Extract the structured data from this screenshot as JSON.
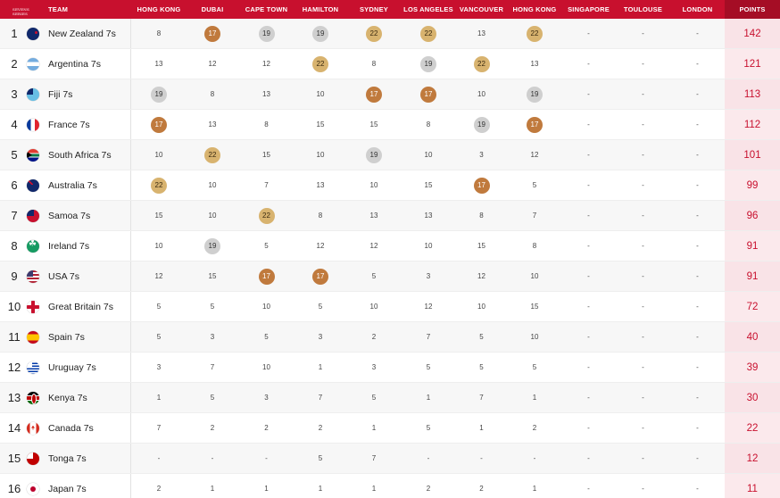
{
  "colors": {
    "header_bg": "#c8102e",
    "points_text": "#c8102e",
    "gold_medal": "#d8b36f",
    "silver_medal": "#cfcfcf",
    "bronze_medal": "#c07a3d"
  },
  "logo_text": "SEVENS SERIES",
  "header": {
    "team": "TEAM",
    "events": [
      "HONG KONG",
      "DUBAI",
      "CAPE TOWN",
      "HAMILTON",
      "SYDNEY",
      "LOS ANGELES",
      "VANCOUVER",
      "HONG KONG",
      "SINGAPORE",
      "TOULOUSE",
      "LONDON"
    ],
    "points": "POINTS"
  },
  "rows": [
    {
      "rank": "1",
      "team": "New Zealand 7s",
      "flag": "nz",
      "scores": [
        "8",
        "17",
        "19",
        "19",
        "22",
        "22",
        "13",
        "22",
        "-",
        "-",
        "-"
      ],
      "medals": [
        "",
        "bronze",
        "silver",
        "silver",
        "gold",
        "gold",
        "",
        "gold",
        "",
        "",
        ""
      ],
      "points": "142"
    },
    {
      "rank": "2",
      "team": "Argentina 7s",
      "flag": "ar",
      "scores": [
        "13",
        "12",
        "12",
        "22",
        "8",
        "19",
        "22",
        "13",
        "-",
        "-",
        "-"
      ],
      "medals": [
        "",
        "",
        "",
        "gold",
        "",
        "silver",
        "gold",
        "",
        "",
        "",
        ""
      ],
      "points": "121"
    },
    {
      "rank": "3",
      "team": "Fiji 7s",
      "flag": "fj",
      "scores": [
        "19",
        "8",
        "13",
        "10",
        "17",
        "17",
        "10",
        "19",
        "-",
        "-",
        "-"
      ],
      "medals": [
        "silver",
        "",
        "",
        "",
        "bronze",
        "bronze",
        "",
        "silver",
        "",
        "",
        ""
      ],
      "points": "113"
    },
    {
      "rank": "4",
      "team": "France 7s",
      "flag": "fr",
      "scores": [
        "17",
        "13",
        "8",
        "15",
        "15",
        "8",
        "19",
        "17",
        "-",
        "-",
        "-"
      ],
      "medals": [
        "bronze",
        "",
        "",
        "",
        "",
        "",
        "silver",
        "bronze",
        "",
        "",
        ""
      ],
      "points": "112"
    },
    {
      "rank": "5",
      "team": "South Africa 7s",
      "flag": "sa",
      "scores": [
        "10",
        "22",
        "15",
        "10",
        "19",
        "10",
        "3",
        "12",
        "-",
        "-",
        "-"
      ],
      "medals": [
        "",
        "gold",
        "",
        "",
        "silver",
        "",
        "",
        "",
        "",
        "",
        ""
      ],
      "points": "101"
    },
    {
      "rank": "6",
      "team": "Australia 7s",
      "flag": "au",
      "scores": [
        "22",
        "10",
        "7",
        "13",
        "10",
        "15",
        "17",
        "5",
        "-",
        "-",
        "-"
      ],
      "medals": [
        "gold",
        "",
        "",
        "",
        "",
        "",
        "bronze",
        "",
        "",
        "",
        ""
      ],
      "points": "99"
    },
    {
      "rank": "7",
      "team": "Samoa 7s",
      "flag": "ws",
      "scores": [
        "15",
        "10",
        "22",
        "8",
        "13",
        "13",
        "8",
        "7",
        "-",
        "-",
        "-"
      ],
      "medals": [
        "",
        "",
        "gold",
        "",
        "",
        "",
        "",
        "",
        "",
        "",
        ""
      ],
      "points": "96"
    },
    {
      "rank": "8",
      "team": "Ireland 7s",
      "flag": "ie",
      "scores": [
        "10",
        "19",
        "5",
        "12",
        "12",
        "10",
        "15",
        "8",
        "-",
        "-",
        "-"
      ],
      "medals": [
        "",
        "silver",
        "",
        "",
        "",
        "",
        "",
        "",
        "",
        "",
        ""
      ],
      "points": "91"
    },
    {
      "rank": "9",
      "team": "USA 7s",
      "flag": "us",
      "scores": [
        "12",
        "15",
        "17",
        "17",
        "5",
        "3",
        "12",
        "10",
        "-",
        "-",
        "-"
      ],
      "medals": [
        "",
        "",
        "bronze",
        "bronze",
        "",
        "",
        "",
        "",
        "",
        "",
        ""
      ],
      "points": "91"
    },
    {
      "rank": "10",
      "team": "Great Britain 7s",
      "flag": "gb",
      "scores": [
        "5",
        "5",
        "10",
        "5",
        "10",
        "12",
        "10",
        "15",
        "-",
        "-",
        "-"
      ],
      "medals": [
        "",
        "",
        "",
        "",
        "",
        "",
        "",
        "",
        "",
        "",
        ""
      ],
      "points": "72"
    },
    {
      "rank": "11",
      "team": "Spain 7s",
      "flag": "es",
      "scores": [
        "5",
        "3",
        "5",
        "3",
        "2",
        "7",
        "5",
        "10",
        "-",
        "-",
        "-"
      ],
      "medals": [
        "",
        "",
        "",
        "",
        "",
        "",
        "",
        "",
        "",
        "",
        ""
      ],
      "points": "40"
    },
    {
      "rank": "12",
      "team": "Uruguay 7s",
      "flag": "uy",
      "scores": [
        "3",
        "7",
        "10",
        "1",
        "3",
        "5",
        "5",
        "5",
        "-",
        "-",
        "-"
      ],
      "medals": [
        "",
        "",
        "",
        "",
        "",
        "",
        "",
        "",
        "",
        "",
        ""
      ],
      "points": "39"
    },
    {
      "rank": "13",
      "team": "Kenya 7s",
      "flag": "ke",
      "scores": [
        "1",
        "5",
        "3",
        "7",
        "5",
        "1",
        "7",
        "1",
        "-",
        "-",
        "-"
      ],
      "medals": [
        "",
        "",
        "",
        "",
        "",
        "",
        "",
        "",
        "",
        "",
        ""
      ],
      "points": "30"
    },
    {
      "rank": "14",
      "team": "Canada 7s",
      "flag": "ca",
      "scores": [
        "7",
        "2",
        "2",
        "2",
        "1",
        "5",
        "1",
        "2",
        "-",
        "-",
        "-"
      ],
      "medals": [
        "",
        "",
        "",
        "",
        "",
        "",
        "",
        "",
        "",
        "",
        ""
      ],
      "points": "22"
    },
    {
      "rank": "15",
      "team": "Tonga 7s",
      "flag": "to",
      "scores": [
        "-",
        "-",
        "-",
        "5",
        "7",
        "-",
        "-",
        "-",
        "-",
        "-",
        "-"
      ],
      "medals": [
        "",
        "",
        "",
        "",
        "",
        "",
        "",
        "",
        "",
        "",
        ""
      ],
      "points": "12"
    },
    {
      "rank": "16",
      "team": "Japan 7s",
      "flag": "jp",
      "scores": [
        "2",
        "1",
        "1",
        "1",
        "1",
        "2",
        "2",
        "1",
        "-",
        "-",
        "-"
      ],
      "medals": [
        "",
        "",
        "",
        "",
        "",
        "",
        "",
        "",
        "",
        "",
        ""
      ],
      "points": "11"
    }
  ]
}
